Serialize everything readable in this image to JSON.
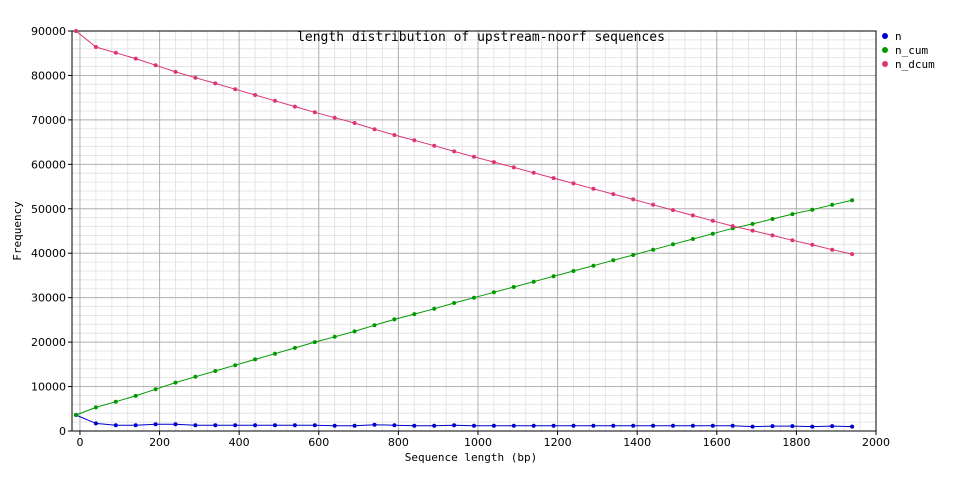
{
  "chart_data": {
    "type": "line",
    "title": "length distribution of upstream-noorf sequences",
    "xlabel": "Sequence length (bp)",
    "ylabel": "Frequency",
    "xlim": [
      -20,
      2000
    ],
    "ylim": [
      0,
      90000
    ],
    "x_ticks": [
      0,
      200,
      400,
      600,
      800,
      1000,
      1200,
      1400,
      1600,
      1800,
      2000
    ],
    "y_ticks": [
      0,
      10000,
      20000,
      30000,
      40000,
      50000,
      60000,
      70000,
      80000,
      90000
    ],
    "grid": true,
    "legend_position": "right",
    "x": [
      -10,
      40,
      90,
      140,
      190,
      240,
      290,
      340,
      390,
      440,
      490,
      540,
      590,
      640,
      690,
      740,
      790,
      840,
      890,
      940,
      990,
      1040,
      1090,
      1140,
      1190,
      1240,
      1290,
      1340,
      1390,
      1440,
      1490,
      1540,
      1590,
      1640,
      1690,
      1740,
      1790,
      1840,
      1890,
      1940
    ],
    "series": [
      {
        "name": "n",
        "color": "#0000cc",
        "values": [
          3600,
          1700,
          1300,
          1300,
          1500,
          1500,
          1300,
          1300,
          1300,
          1300,
          1300,
          1300,
          1300,
          1200,
          1200,
          1400,
          1300,
          1200,
          1200,
          1300,
          1200,
          1200,
          1200,
          1200,
          1200,
          1200,
          1200,
          1200,
          1200,
          1200,
          1200,
          1200,
          1200,
          1200,
          1000,
          1100,
          1100,
          1000,
          1100,
          1000
        ]
      },
      {
        "name": "n_cum",
        "color": "#009900",
        "values": [
          3600,
          5300,
          6600,
          7900,
          9400,
          10900,
          12200,
          13500,
          14800,
          16100,
          17400,
          18700,
          20000,
          21200,
          22400,
          23800,
          25100,
          26300,
          27500,
          28800,
          30000,
          31200,
          32400,
          33600,
          34800,
          36000,
          37200,
          38400,
          39600,
          40800,
          42000,
          43200,
          44400,
          45600,
          46600,
          47700,
          48800,
          49800,
          50900,
          51900
        ]
      },
      {
        "name": "n_dcum",
        "color": "#dd3377",
        "values": [
          90000,
          86400,
          85100,
          83800,
          82300,
          80800,
          79500,
          78200,
          76900,
          75600,
          74300,
          73000,
          71700,
          70500,
          69300,
          67900,
          66600,
          65400,
          64200,
          62900,
          61700,
          60500,
          59300,
          58100,
          56900,
          55700,
          54500,
          53300,
          52100,
          50900,
          49700,
          48500,
          47300,
          46100,
          45100,
          44000,
          42900,
          41900,
          40800,
          39800
        ]
      }
    ]
  }
}
